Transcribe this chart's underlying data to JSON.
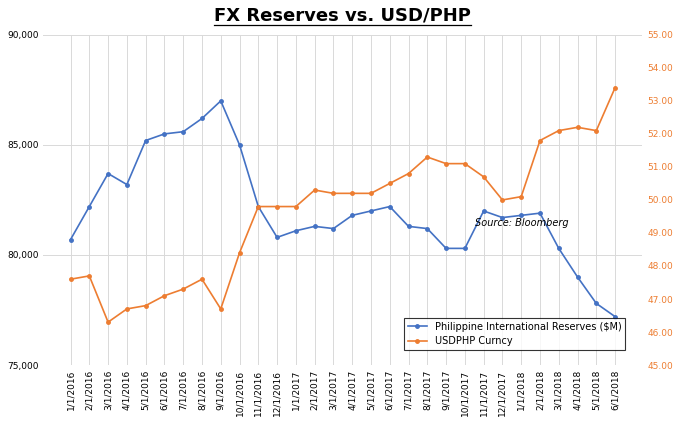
{
  "title": "FX Reserves vs. USD/PHP",
  "source_text": "Source: Bloomberg",
  "x_labels": [
    "1/1/2016",
    "2/1/2016",
    "3/1/2016",
    "4/1/2016",
    "5/1/2016",
    "6/1/2016",
    "7/1/2016",
    "8/1/2016",
    "9/1/2016",
    "10/1/2016",
    "11/1/2016",
    "12/1/2016",
    "1/1/2017",
    "2/1/2017",
    "3/1/2017",
    "4/1/2017",
    "5/1/2017",
    "6/1/2017",
    "7/1/2017",
    "8/1/2017",
    "9/1/2017",
    "10/1/2017",
    "11/1/2017",
    "12/1/2017",
    "1/1/2018",
    "2/1/2018",
    "3/1/2018",
    "4/1/2018",
    "5/1/2018",
    "6/1/2018"
  ],
  "reserves": [
    80700,
    82200,
    83700,
    83200,
    85200,
    85500,
    85600,
    86200,
    87000,
    85000,
    82200,
    80800,
    81100,
    81300,
    81200,
    81800,
    82000,
    82200,
    81300,
    81200,
    80300,
    80300,
    82000,
    81700,
    81800,
    81900,
    80300,
    79000,
    77800,
    77200
  ],
  "usdphp": [
    47.6,
    47.7,
    46.3,
    46.7,
    46.8,
    47.1,
    47.3,
    47.6,
    46.7,
    48.4,
    49.8,
    49.8,
    49.8,
    50.3,
    50.2,
    50.2,
    50.2,
    50.5,
    50.8,
    51.3,
    51.1,
    51.1,
    50.7,
    50.0,
    50.1,
    51.8,
    52.1,
    52.2,
    52.1,
    53.4
  ],
  "reserves_color": "#4472c4",
  "usdphp_color": "#ed7d31",
  "reserves_ylim": [
    75000,
    90000
  ],
  "usdphp_ylim": [
    45.0,
    55.0
  ],
  "reserves_yticks": [
    75000,
    80000,
    85000,
    90000
  ],
  "usdphp_yticks": [
    45.0,
    46.0,
    47.0,
    48.0,
    49.0,
    50.0,
    51.0,
    52.0,
    53.0,
    54.0,
    55.0
  ],
  "reserves_label": "Philippine International Reserves ($M)",
  "usdphp_label": "USDPHP Curncy",
  "bg_color": "#ffffff",
  "grid_color": "#d9d9d9",
  "title_fontsize": 13,
  "tick_fontsize": 6.5,
  "source_fontsize": 7,
  "legend_fontsize": 7
}
